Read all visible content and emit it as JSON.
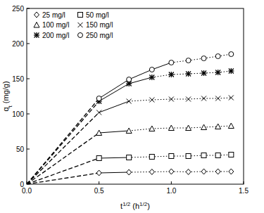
{
  "chart_data": {
    "type": "line",
    "x_label": "t1/2 (h1/2)",
    "y_label": "qt (mg/g)",
    "x": [
      0,
      0.5,
      0.707,
      0.866,
      1.0,
      1.118,
      1.225,
      1.323,
      1.414
    ],
    "series": [
      {
        "name": "25 mg/l",
        "color": "#000000",
        "marker": "diamond",
        "values": [
          0,
          16,
          17,
          17.5,
          18,
          17.5,
          18,
          18,
          18
        ]
      },
      {
        "name": "50 mg/l",
        "color": "#000000",
        "marker": "square",
        "values": [
          0,
          37,
          38,
          39,
          40,
          40,
          41,
          41,
          42
        ]
      },
      {
        "name": "100 mg/l",
        "color": "#000000",
        "marker": "triangle",
        "values": [
          0,
          73,
          76,
          79,
          80,
          80,
          81,
          82,
          83
        ]
      },
      {
        "name": "150 mg/l",
        "color": "#000000",
        "marker": "x",
        "values": [
          0,
          102,
          118,
          120,
          121,
          121,
          122,
          122,
          123
        ]
      },
      {
        "name": "200 mg/l",
        "color": "#000000",
        "marker": "asterisk",
        "values": [
          0,
          118,
          143,
          152,
          156,
          157,
          158,
          159,
          161
        ]
      },
      {
        "name": "250 mg/l",
        "color": "#000000",
        "marker": "circle",
        "values": [
          0,
          122,
          149,
          163,
          173,
          176,
          179,
          182,
          185
        ]
      }
    ],
    "xlim": [
      0,
      1.5
    ],
    "xticks": [
      {
        "value": 0,
        "label": "0.0"
      },
      {
        "value": 0.5,
        "label": "0.5"
      },
      {
        "value": 1.0,
        "label": "1.0"
      },
      {
        "value": 1.5,
        "label": "1.5"
      }
    ],
    "ylim": [
      0,
      250
    ],
    "yticks": [
      0,
      50,
      100,
      150,
      200,
      250
    ],
    "legend": "top-left",
    "grid": false
  }
}
